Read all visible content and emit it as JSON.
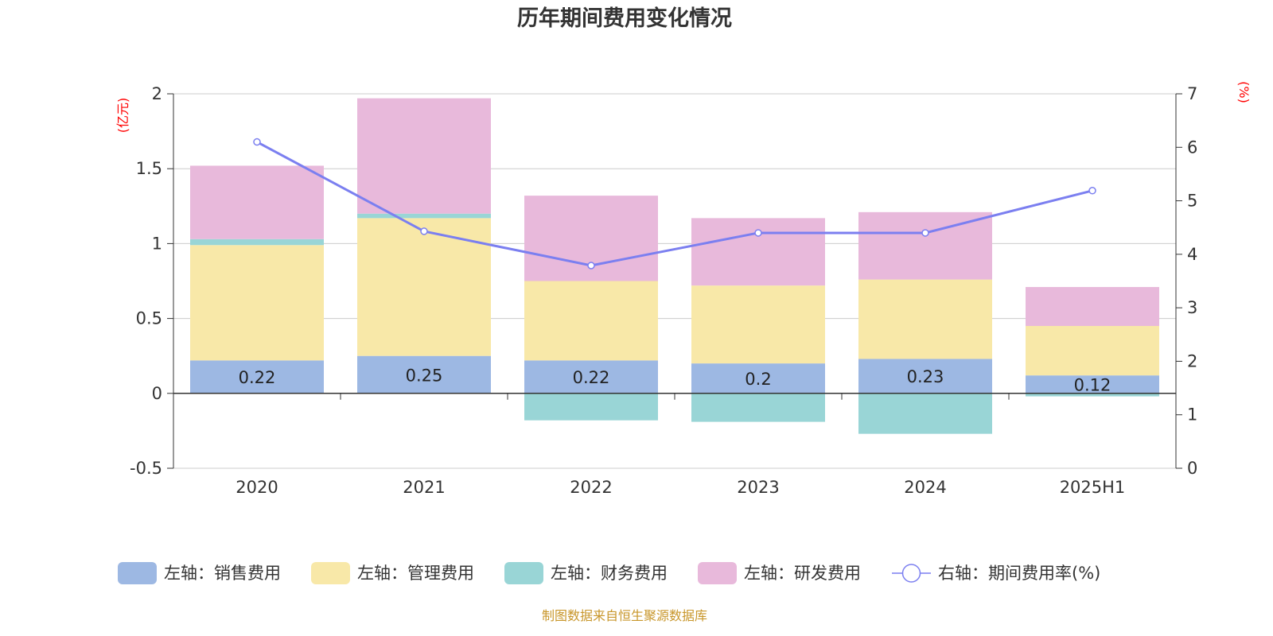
{
  "chart_data": {
    "type": "bar",
    "title": "历年期间费用变化情况",
    "categories": [
      "2020",
      "2021",
      "2022",
      "2023",
      "2024",
      "2025H1"
    ],
    "left_axis": {
      "unit": "(亿元)",
      "ylim": [
        -0.5,
        2
      ],
      "ticks": [
        -0.5,
        0,
        0.5,
        1,
        1.5,
        2
      ]
    },
    "right_axis": {
      "unit": "(%)",
      "ylim": [
        0,
        7
      ],
      "ticks": [
        0,
        1,
        2,
        3,
        4,
        5,
        6,
        7
      ]
    },
    "series": [
      {
        "name": "左轴：销售费用",
        "type": "bar",
        "stack": "left",
        "color": "#9db8e3",
        "values": [
          0.22,
          0.25,
          0.22,
          0.2,
          0.23,
          0.12
        ],
        "labels": [
          "0.22",
          "0.25",
          "0.22",
          "0.2",
          "0.23",
          "0.12"
        ]
      },
      {
        "name": "左轴：管理费用",
        "type": "bar",
        "stack": "left",
        "color": "#f8e8a8",
        "values": [
          0.77,
          0.92,
          0.53,
          0.52,
          0.53,
          0.33
        ]
      },
      {
        "name": "左轴：财务费用",
        "type": "bar",
        "stack": "left",
        "color": "#99d5d6",
        "values": [
          0.04,
          0.03,
          -0.18,
          -0.19,
          -0.27,
          -0.02
        ]
      },
      {
        "name": "左轴：研发费用",
        "type": "bar",
        "stack": "left",
        "color": "#e8b9db",
        "values": [
          0.49,
          0.77,
          0.57,
          0.45,
          0.45,
          0.26
        ]
      },
      {
        "name": "右轴：期间费用率(%)",
        "type": "line",
        "axis": "right",
        "color": "#7b7ff0",
        "values": [
          6.1,
          4.43,
          3.79,
          4.4,
          4.4,
          5.19
        ]
      }
    ],
    "grid": true,
    "legend_position": "bottom"
  },
  "source": "制图数据来自恒生聚源数据库"
}
